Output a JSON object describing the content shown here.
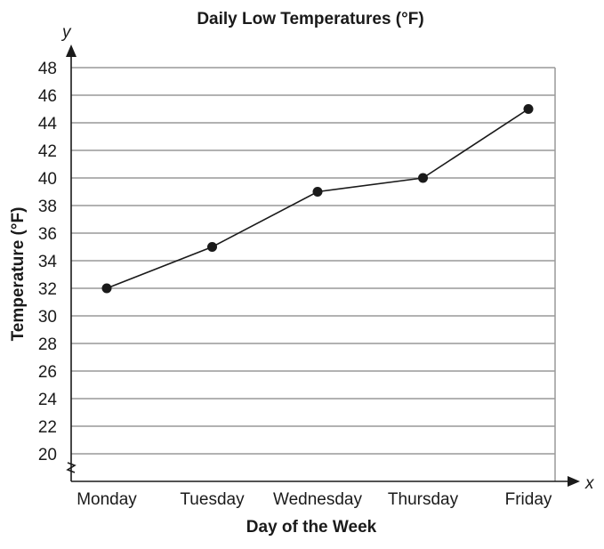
{
  "chart_data": {
    "type": "line",
    "title": "Daily Low Temperatures (°F)",
    "xlabel": "Day of the Week",
    "ylabel": "Temperature (°F)",
    "x_axis_letter": "x",
    "y_axis_letter": "y",
    "categories": [
      "Monday",
      "Tuesday",
      "Wednesday",
      "Thursday",
      "Friday"
    ],
    "values": [
      32,
      35,
      39,
      40,
      45
    ],
    "yticks": [
      20,
      22,
      24,
      26,
      28,
      30,
      32,
      34,
      36,
      38,
      40,
      42,
      44,
      46,
      48
    ],
    "ylim": [
      20,
      48
    ],
    "y_axis_break": true,
    "grid": true,
    "line_color": "#1a1a1a",
    "grid_color": "#999999"
  }
}
